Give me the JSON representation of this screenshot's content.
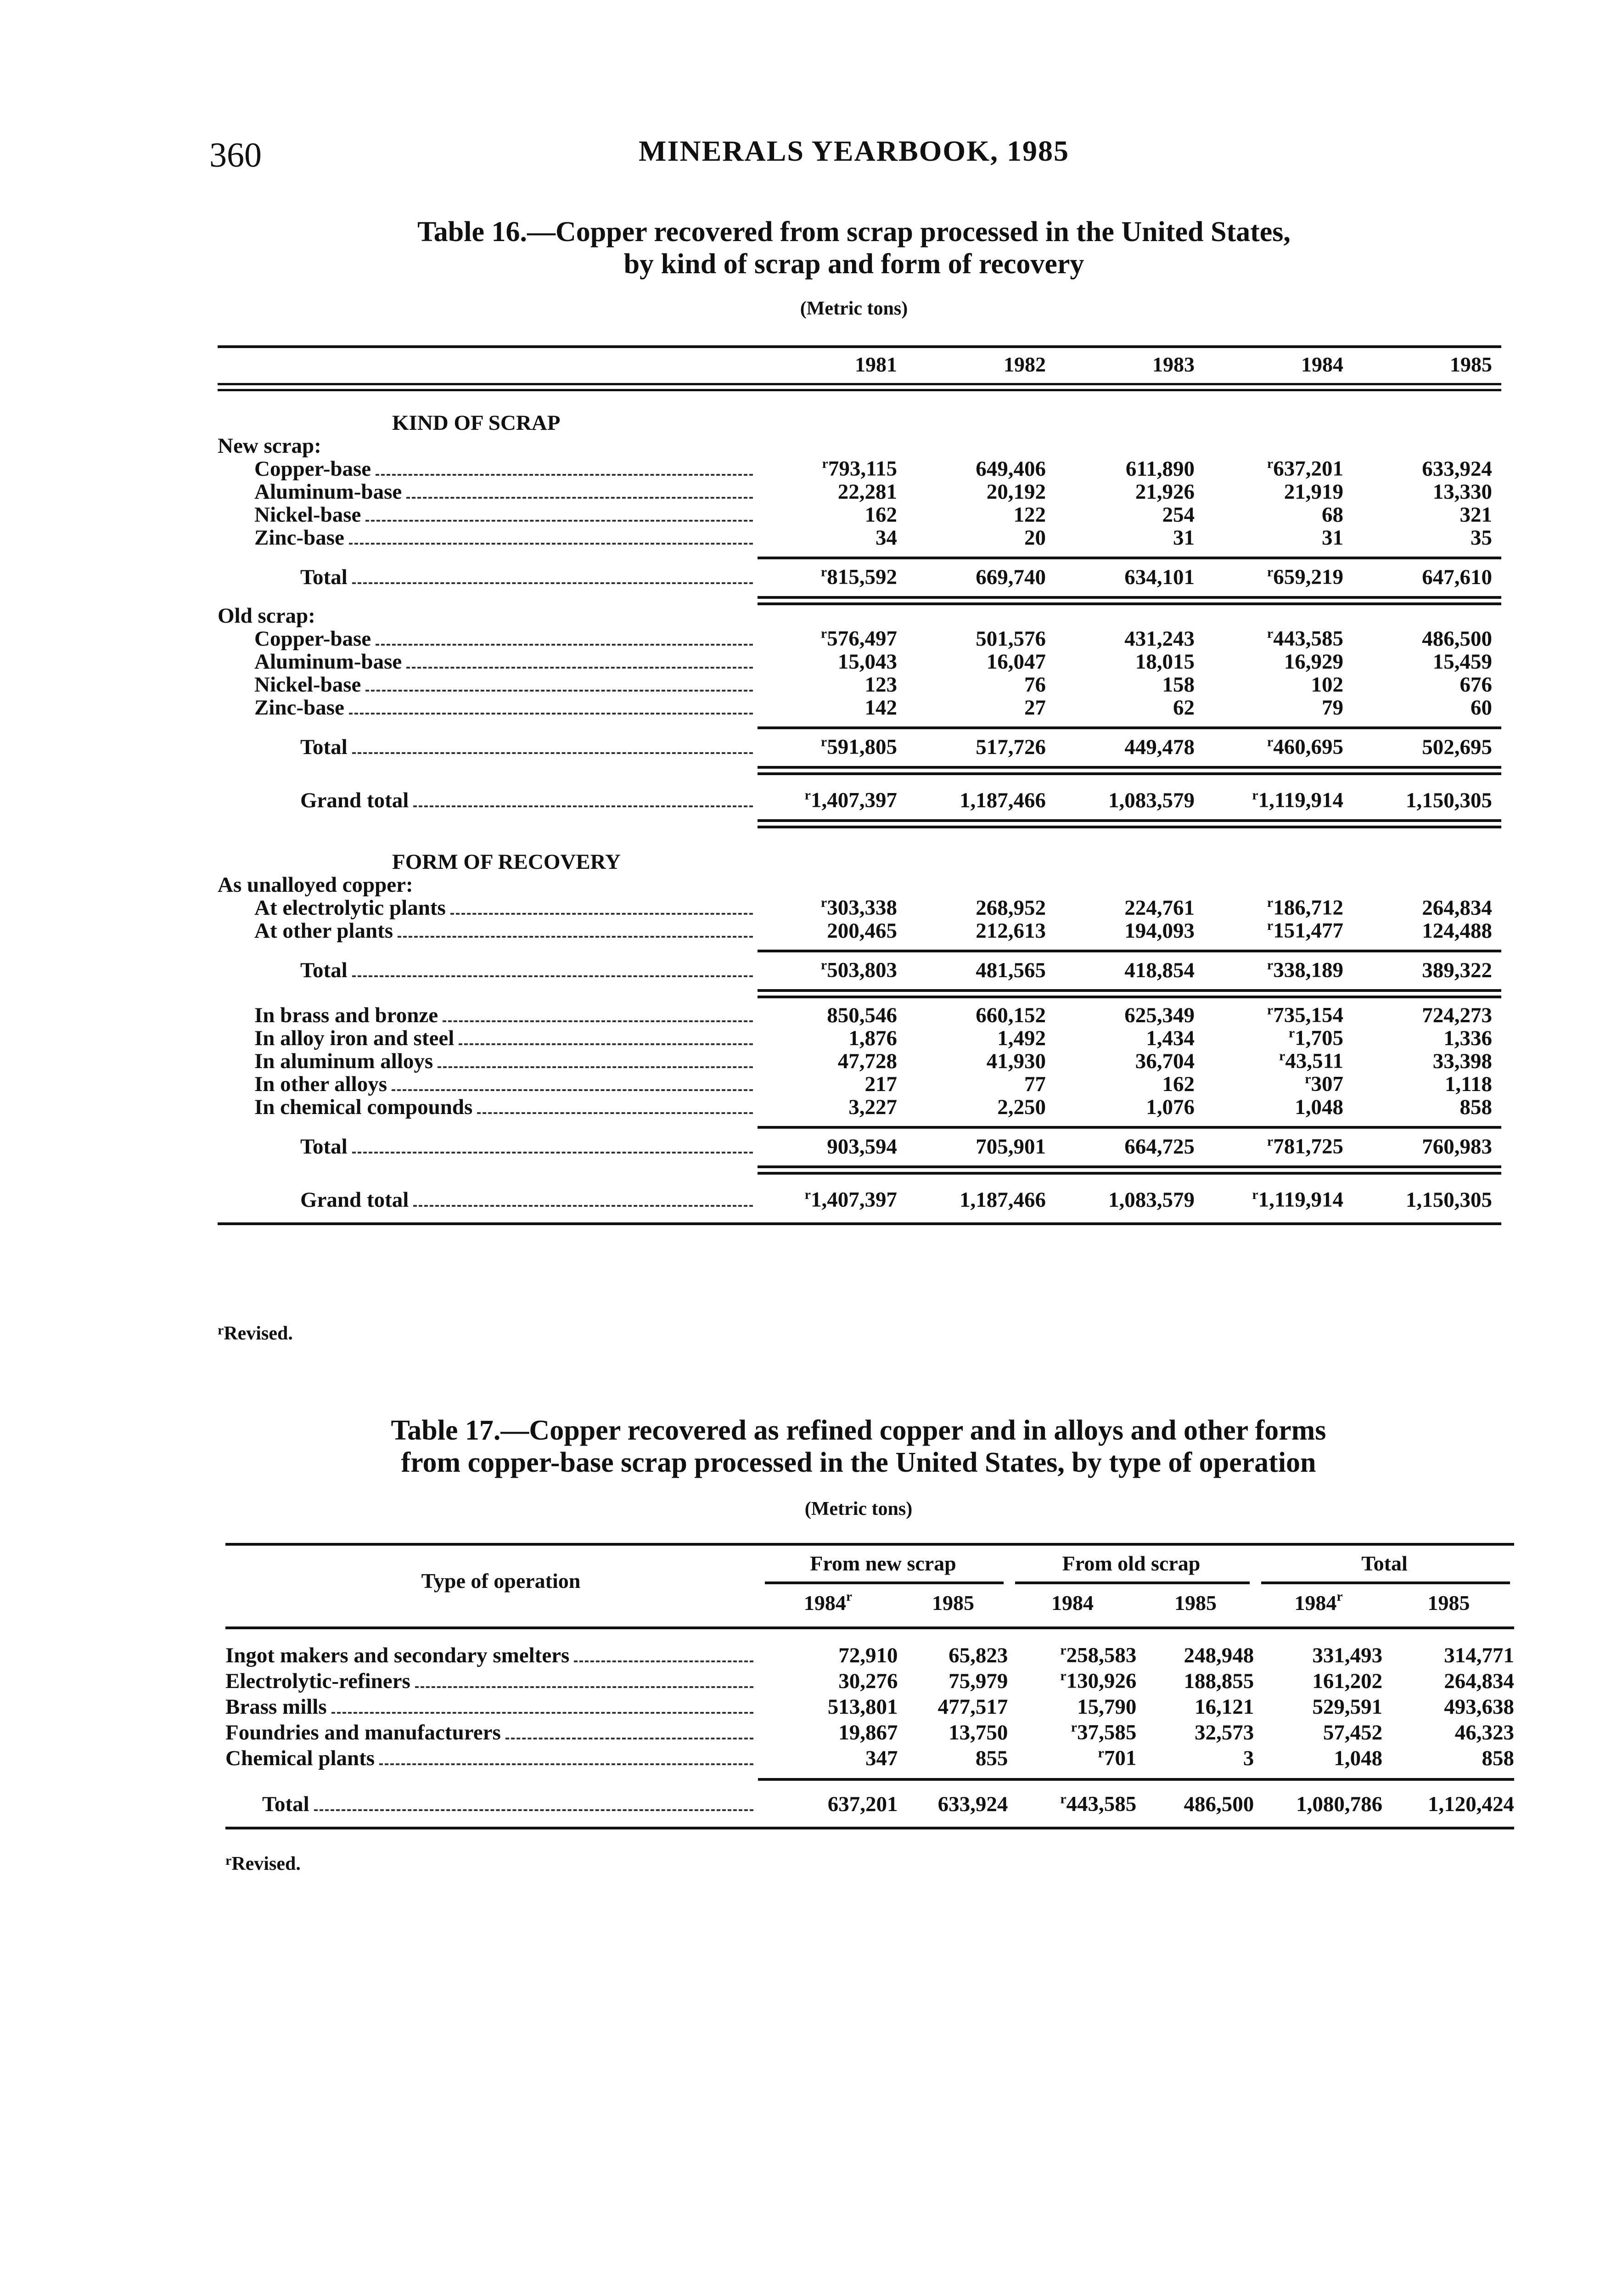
{
  "page": {
    "number": "360",
    "running_head": "MINERALS YEARBOOK, 1985"
  },
  "table16": {
    "title_line1": "Table 16.—Copper recovered from scrap processed in the United States,",
    "title_line2": "by kind of scrap and form of recovery",
    "units": "(Metric tons)",
    "years": [
      "1981",
      "1982",
      "1983",
      "1984",
      "1985"
    ],
    "rows": [
      {
        "type": "section",
        "label": "KIND OF SCRAP"
      },
      {
        "type": "group",
        "label": "New scrap:"
      },
      {
        "type": "item",
        "label": "Copper-base",
        "values": [
          "r793,115",
          "649,406",
          "611,890",
          "r637,201",
          "633,924"
        ]
      },
      {
        "type": "item",
        "label": "Aluminum-base",
        "values": [
          "22,281",
          "20,192",
          "21,926",
          "21,919",
          "13,330"
        ]
      },
      {
        "type": "item",
        "label": "Nickel-base",
        "values": [
          "162",
          "122",
          "254",
          "68",
          "321"
        ]
      },
      {
        "type": "item",
        "label": "Zinc-base",
        "values": [
          "34",
          "20",
          "31",
          "31",
          "35"
        ]
      },
      {
        "type": "total",
        "label": "Total",
        "values": [
          "r815,592",
          "669,740",
          "634,101",
          "r659,219",
          "647,610"
        ]
      },
      {
        "type": "group",
        "label": "Old scrap:"
      },
      {
        "type": "item",
        "label": "Copper-base",
        "values": [
          "r576,497",
          "501,576",
          "431,243",
          "r443,585",
          "486,500"
        ]
      },
      {
        "type": "item",
        "label": "Aluminum-base",
        "values": [
          "15,043",
          "16,047",
          "18,015",
          "16,929",
          "15,459"
        ]
      },
      {
        "type": "item",
        "label": "Nickel-base",
        "values": [
          "123",
          "76",
          "158",
          "102",
          "676"
        ]
      },
      {
        "type": "item",
        "label": "Zinc-base",
        "values": [
          "142",
          "27",
          "62",
          "79",
          "60"
        ]
      },
      {
        "type": "total",
        "label": "Total",
        "values": [
          "r591,805",
          "517,726",
          "449,478",
          "r460,695",
          "502,695"
        ]
      },
      {
        "type": "grand",
        "label": "Grand total",
        "values": [
          "r1,407,397",
          "1,187,466",
          "1,083,579",
          "r1,119,914",
          "1,150,305"
        ]
      },
      {
        "type": "section",
        "label": "FORM OF RECOVERY"
      },
      {
        "type": "group",
        "label": "As unalloyed copper:"
      },
      {
        "type": "item",
        "label": "At electrolytic plants",
        "values": [
          "r303,338",
          "268,952",
          "224,761",
          "r186,712",
          "264,834"
        ]
      },
      {
        "type": "item",
        "label": "At other plants",
        "values": [
          "200,465",
          "212,613",
          "194,093",
          "r151,477",
          "124,488"
        ]
      },
      {
        "type": "total",
        "label": "Total",
        "values": [
          "r503,803",
          "481,565",
          "418,854",
          "r338,189",
          "389,322"
        ]
      },
      {
        "type": "item2",
        "label": "In brass and bronze",
        "values": [
          "850,546",
          "660,152",
          "625,349",
          "r735,154",
          "724,273"
        ]
      },
      {
        "type": "item2",
        "label": "In alloy iron and steel",
        "values": [
          "1,876",
          "1,492",
          "1,434",
          "r1,705",
          "1,336"
        ]
      },
      {
        "type": "item2",
        "label": "In aluminum alloys",
        "values": [
          "47,728",
          "41,930",
          "36,704",
          "r43,511",
          "33,398"
        ]
      },
      {
        "type": "item2",
        "label": "In other alloys",
        "values": [
          "217",
          "77",
          "162",
          "r307",
          "1,118"
        ]
      },
      {
        "type": "item2",
        "label": "In chemical compounds",
        "values": [
          "3,227",
          "2,250",
          "1,076",
          "1,048",
          "858"
        ]
      },
      {
        "type": "total",
        "label": "Total",
        "values": [
          "903,594",
          "705,901",
          "664,725",
          "r781,725",
          "760,983"
        ]
      },
      {
        "type": "grand",
        "label": "Grand total",
        "values": [
          "r1,407,397",
          "1,187,466",
          "1,083,579",
          "r1,119,914",
          "1,150,305"
        ]
      }
    ],
    "footnote": "Revised."
  },
  "table17": {
    "title_line1": "Table 17.—Copper recovered as refined copper and in alloys and other forms",
    "title_line2": "from copper-base scrap processed in the United States, by type of operation",
    "units": "(Metric tons)",
    "stub_header": "Type of operation",
    "groups": [
      "From new scrap",
      "From old scrap",
      "Total"
    ],
    "years": [
      "r1984",
      "1985",
      "1984",
      "1985",
      "r1984",
      "1985"
    ],
    "rows": [
      {
        "label": "Ingot makers and secondary smelters",
        "values": [
          "72,910",
          "65,823",
          "r258,583",
          "248,948",
          "331,493",
          "314,771"
        ]
      },
      {
        "label": "Electrolytic-refiners",
        "values": [
          "30,276",
          "75,979",
          "r130,926",
          "188,855",
          "161,202",
          "264,834"
        ]
      },
      {
        "label": "Brass mills",
        "values": [
          "513,801",
          "477,517",
          "15,790",
          "16,121",
          "529,591",
          "493,638"
        ]
      },
      {
        "label": "Foundries and manufacturers",
        "values": [
          "19,867",
          "13,750",
          "r37,585",
          "32,573",
          "57,452",
          "46,323"
        ]
      },
      {
        "label": "Chemical plants",
        "values": [
          "347",
          "855",
          "r701",
          "3",
          "1,048",
          "858"
        ]
      }
    ],
    "total": {
      "label": "Total",
      "values": [
        "637,201",
        "633,924",
        "r443,585",
        "486,500",
        "1,080,786",
        "1,120,424"
      ]
    },
    "footnote": "Revised."
  }
}
